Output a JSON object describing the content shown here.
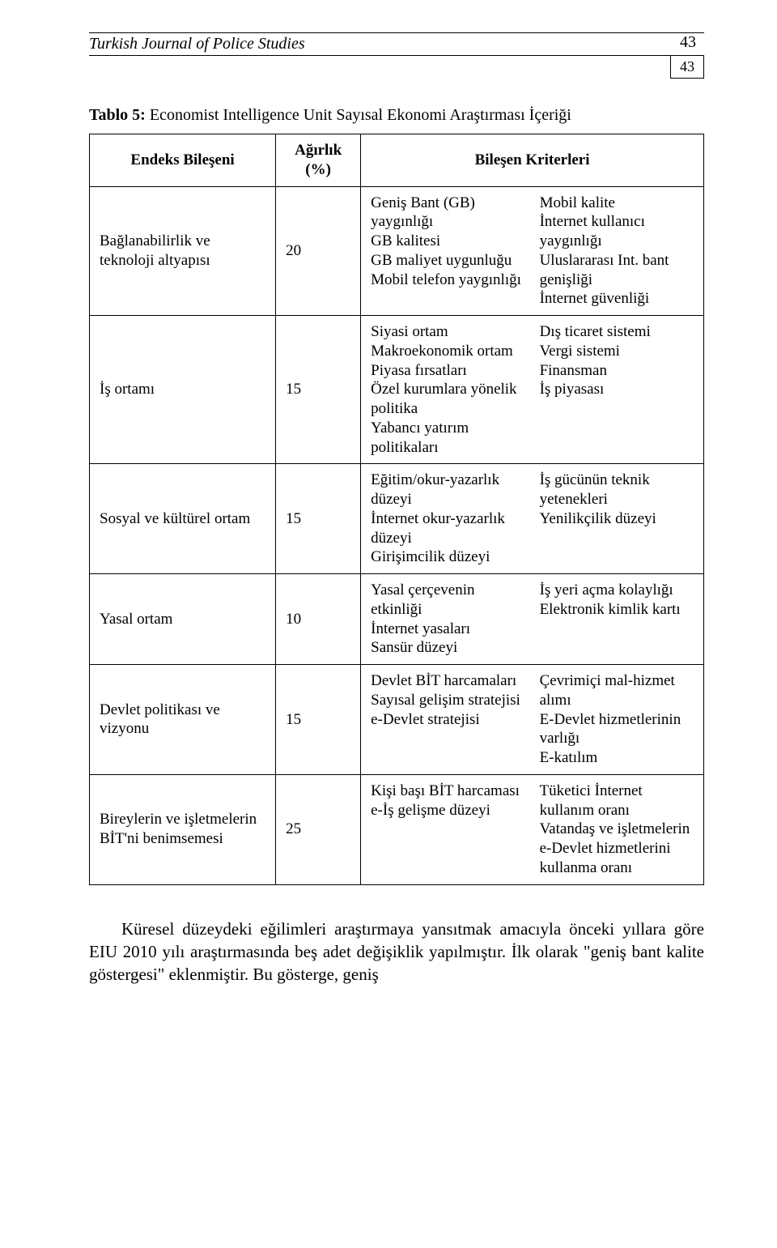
{
  "header": {
    "journal_title": "Turkish Journal of Police Studies",
    "page_number": "43"
  },
  "table_caption_bold": "Tablo 5:",
  "table_caption_rest": " Economist Intelligence Unit Sayısal Ekonomi Araştırması İçeriği",
  "columns": {
    "component": "Endeks Bileşeni",
    "weight_line1": "Ağırlık",
    "weight_line2": "(%)",
    "criteria": "Bileşen Kriterleri"
  },
  "rows": [
    {
      "component": "Bağlanabilirlik ve teknoloji altyapısı",
      "weight": "20",
      "criteria_left": "Geniş Bant (GB) yaygınlığı\nGB kalitesi\nGB maliyet uygunluğu\nMobil telefon yaygınlığı",
      "criteria_right": "Mobil kalite\nİnternet kullanıcı yaygınlığı\nUluslararası Int. bant genişliği\nİnternet güvenliği"
    },
    {
      "component": "İş ortamı",
      "weight": "15",
      "criteria_left": "Siyasi ortam\nMakroekonomik ortam\nPiyasa fırsatları\nÖzel kurumlara yönelik politika\nYabancı yatırım politikaları",
      "criteria_right": "Dış ticaret sistemi\nVergi sistemi\nFinansman\nİş piyasası"
    },
    {
      "component": "Sosyal ve kültürel ortam",
      "weight": "15",
      "criteria_left": "Eğitim/okur-yazarlık düzeyi\nİnternet okur-yazarlık düzeyi\nGirişimcilik düzeyi",
      "criteria_right": "İş gücünün teknik yetenekleri\nYenilikçilik düzeyi"
    },
    {
      "component": "Yasal ortam",
      "weight": "10",
      "criteria_left": "Yasal çerçevenin etkinliği\nİnternet yasaları\nSansür düzeyi",
      "criteria_right": "İş yeri açma kolaylığı\nElektronik kimlik kartı"
    },
    {
      "component": "Devlet politikası ve vizyonu",
      "weight": "15",
      "criteria_left": "Devlet BİT harcamaları\nSayısal gelişim stratejisi\ne-Devlet stratejisi",
      "criteria_right": "Çevrimiçi mal-hizmet alımı\nE-Devlet hizmetlerinin varlığı\nE-katılım"
    },
    {
      "component": "Bireylerin ve işletmelerin BİT'ni benimsemesi",
      "weight": "25",
      "criteria_left": "Kişi başı BİT harcaması\ne-İş gelişme düzeyi",
      "criteria_right": "Tüketici İnternet kullanım oranı\nVatandaş ve işletmelerin e-Devlet hizmetlerini kullanma oranı"
    }
  ],
  "body_paragraph": "Küresel düzeydeki eğilimleri araştırmaya yansıtmak amacıyla önceki yıllara göre EIU 2010 yılı araştırmasında beş adet değişiklik yapılmıştır. İlk olarak \"geniş bant kalite göstergesi\" eklenmiştir. Bu gösterge, geniş"
}
